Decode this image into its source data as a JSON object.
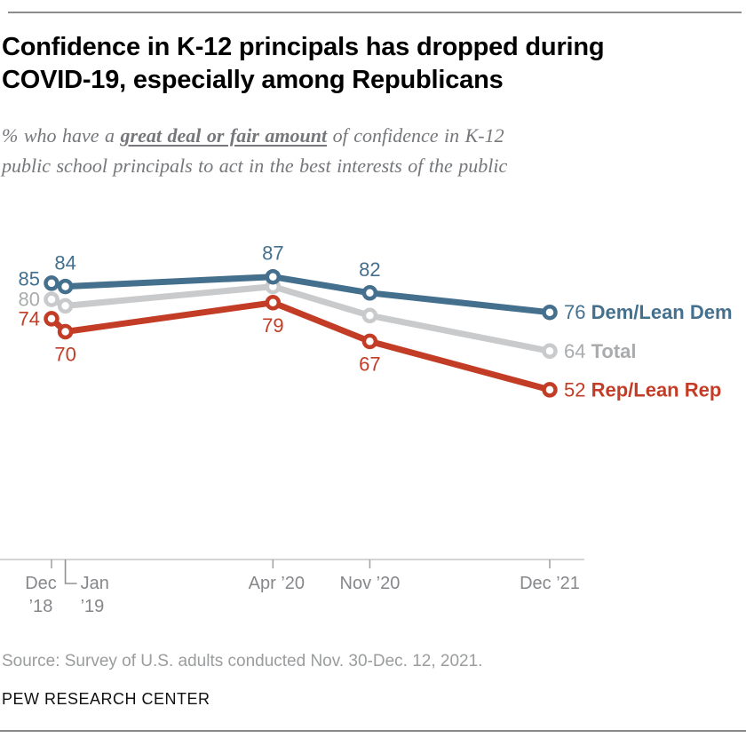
{
  "header": {
    "title_lines": [
      "Confidence in K-12 principals has dropped during",
      "COVID-19, especially among Republicans"
    ],
    "subtitle_lines": [
      {
        "pre": "% who have a ",
        "em": "great deal or fair amount",
        "post": " of confidence in K-12"
      },
      {
        "pre": "",
        "em": "",
        "post": "public school principals to act in the best interests of the public"
      }
    ]
  },
  "chart_data": {
    "type": "line",
    "title": "Confidence in K-12 principals has dropped during COVID-19, especially among Republicans",
    "subtitle": "% who have a great deal or fair amount of confidence in K-12 public school principals to act in the best interests of the public",
    "x_categories": [
      "Dec ’18",
      "Jan ’19",
      "Apr ’20",
      "Nov ’20",
      "Dec ’21"
    ],
    "x_months": [
      0,
      1,
      16,
      23,
      36
    ],
    "month_span": 36,
    "ylim": [
      0,
      100
    ],
    "grid": false,
    "legend_position": "line-end-right",
    "x_axis_ticks": [
      {
        "lines": [
          "Dec",
          "’18"
        ],
        "month": 0,
        "anchor": "middle",
        "dx": -12
      },
      {
        "lines": [
          "Jan",
          "’19"
        ],
        "month": 1,
        "anchor": "start",
        "dx": 17,
        "elbow": true
      },
      {
        "lines": [
          "Apr ’20"
        ],
        "month": 16,
        "anchor": "middle",
        "dx": 4
      },
      {
        "lines": [
          "Nov ’20"
        ],
        "month": 23,
        "anchor": "middle",
        "dx": 0
      },
      {
        "lines": [
          "Dec ’21"
        ],
        "month": 36,
        "anchor": "middle",
        "dx": 0
      }
    ],
    "series": [
      {
        "name": "Dem/Lean Dem",
        "color": "#44708e",
        "text_color": "#44708e",
        "values": [
          85,
          84,
          87,
          82,
          76
        ],
        "value_labels": [
          "85",
          "84",
          "87",
          "82",
          "76"
        ],
        "label_positions": [
          "left",
          "above",
          "above",
          "above",
          "end"
        ],
        "label_dy": [
          -5,
          0,
          0,
          0,
          0
        ]
      },
      {
        "name": "Total",
        "color": "#c9cacb",
        "text_color": "#a9abad",
        "values": [
          80,
          78,
          84,
          75,
          64
        ],
        "value_labels": [
          "80",
          null,
          null,
          null,
          "64"
        ],
        "label_positions": [
          "left",
          null,
          null,
          null,
          "end"
        ],
        "label_dy": [
          0,
          0,
          0,
          0,
          0
        ]
      },
      {
        "name": "Rep/Lean Rep",
        "color": "#c33d26",
        "text_color": "#c33d26",
        "values": [
          74,
          70,
          79,
          67,
          52
        ],
        "value_labels": [
          "74",
          "70",
          "79",
          "67",
          "52"
        ],
        "label_positions": [
          "left",
          "below",
          "below",
          "below",
          "end"
        ],
        "label_dy": [
          0,
          0,
          0,
          0,
          0
        ]
      }
    ],
    "draw_order": [
      1,
      0,
      2
    ]
  },
  "footer": {
    "source": "Source: Survey of U.S. adults conducted Nov. 30-Dec. 12, 2021.",
    "brand": "PEW RESEARCH CENTER"
  }
}
